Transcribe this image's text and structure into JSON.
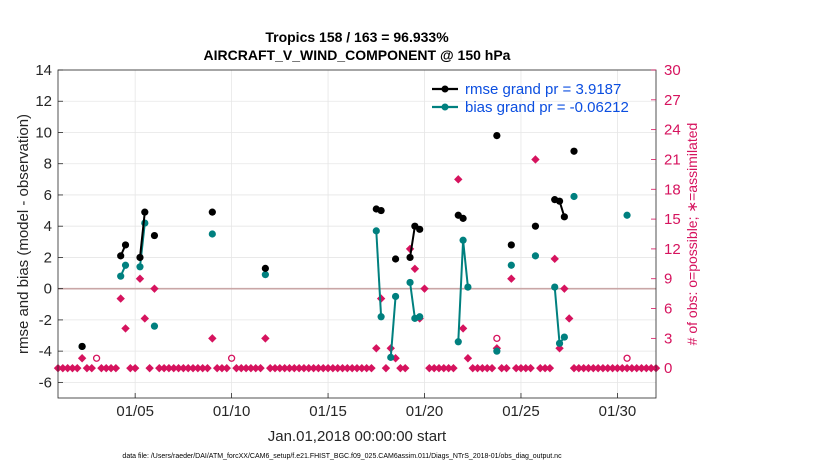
{
  "colors": {
    "rmse": "#000000",
    "bias": "#00807f",
    "obs": "#d6135e",
    "zero_line": "#c9a6a6",
    "legend_text": "#0b4ee0",
    "grid": "#e6e6e6"
  },
  "chart_data": {
    "type": "line",
    "title": "Tropics 158 / 163 = 96.933%",
    "subtitle": "AIRCRAFT_V_WIND_COMPONENT @ 150 hPa",
    "xlabel": "Jan.01,2018 00:00:00 start",
    "ylabel": "rmse and bias (model - observation)",
    "ylabel_right": "# of obs: o=possible; ∗=assimilated",
    "xlim": [
      1,
      32
    ],
    "ylim": [
      -7,
      14
    ],
    "ylim_right": [
      -3,
      30
    ],
    "x_ticks": [
      5,
      10,
      15,
      20,
      25,
      30
    ],
    "x_tick_labels": [
      "01/05",
      "01/10",
      "01/15",
      "01/20",
      "01/25",
      "01/30"
    ],
    "y_ticks": [
      -6,
      -4,
      -2,
      0,
      2,
      4,
      6,
      8,
      10,
      12,
      14
    ],
    "y_tick_labels": [
      "-6",
      "-4",
      "-2",
      "0",
      "2",
      "4",
      "6",
      "8",
      "10",
      "12",
      "14"
    ],
    "y_ticks_right": [
      0,
      3,
      6,
      9,
      12,
      15,
      18,
      21,
      24,
      27,
      30
    ],
    "y_tick_labels_right": [
      "0",
      "3",
      "6",
      "9",
      "12",
      "15",
      "18",
      "21",
      "24",
      "27",
      "30"
    ],
    "grid": true,
    "legend": {
      "position": "top-right",
      "entries": [
        "rmse grand pr = 3.9187",
        "bias grand pr = -0.06212"
      ]
    },
    "series": [
      {
        "name": "rmse grand pr = 3.9187",
        "segments": [
          [
            [
              2.25,
              -3.7
            ]
          ],
          [
            [
              4.25,
              2.1
            ],
            [
              4.5,
              2.8
            ]
          ],
          [
            [
              5.25,
              2.0
            ],
            [
              5.5,
              4.9
            ]
          ],
          [
            [
              6.0,
              3.4
            ]
          ],
          [
            [
              9.0,
              4.9
            ]
          ],
          [
            [
              11.75,
              1.3
            ]
          ],
          [
            [
              17.5,
              5.1
            ],
            [
              17.75,
              5.0
            ]
          ],
          [
            [
              18.5,
              1.9
            ]
          ],
          [
            [
              19.25,
              2.0
            ],
            [
              19.5,
              4.0
            ],
            [
              19.75,
              3.8
            ]
          ],
          [
            [
              21.75,
              4.7
            ],
            [
              22.0,
              4.5
            ]
          ],
          [
            [
              23.75,
              9.8
            ]
          ],
          [
            [
              24.5,
              2.8
            ]
          ],
          [
            [
              25.75,
              4.0
            ]
          ],
          [
            [
              26.75,
              5.7
            ],
            [
              27.0,
              5.6
            ],
            [
              27.25,
              4.6
            ]
          ],
          [
            [
              27.75,
              8.8
            ]
          ]
        ]
      },
      {
        "name": "bias grand pr = -0.06212",
        "segments": [
          [
            [
              2.25,
              -3.7
            ]
          ],
          [
            [
              4.25,
              0.8
            ],
            [
              4.5,
              1.5
            ]
          ],
          [
            [
              5.25,
              1.4
            ],
            [
              5.5,
              4.2
            ]
          ],
          [
            [
              6.0,
              -2.4
            ]
          ],
          [
            [
              9.0,
              3.5
            ]
          ],
          [
            [
              11.75,
              0.9
            ]
          ],
          [
            [
              17.5,
              3.7
            ],
            [
              17.75,
              -1.8
            ]
          ],
          [
            [
              18.25,
              -4.4
            ],
            [
              18.5,
              -0.5
            ]
          ],
          [
            [
              19.25,
              0.4
            ],
            [
              19.5,
              -1.9
            ],
            [
              19.75,
              -1.8
            ]
          ],
          [
            [
              21.75,
              -3.4
            ],
            [
              22.0,
              3.1
            ],
            [
              22.25,
              0.1
            ]
          ],
          [
            [
              23.75,
              -4.0
            ]
          ],
          [
            [
              24.5,
              1.5
            ]
          ],
          [
            [
              25.75,
              2.1
            ]
          ],
          [
            [
              26.75,
              0.1
            ],
            [
              27.0,
              -3.5
            ],
            [
              27.25,
              -3.1
            ]
          ],
          [
            [
              27.75,
              5.9
            ]
          ],
          [
            [
              30.5,
              4.7
            ]
          ]
        ]
      },
      {
        "name": "# of obs possible (o)",
        "axis": "right",
        "points": [
          [
            3.0,
            1
          ],
          [
            10.0,
            1
          ],
          [
            23.75,
            3
          ],
          [
            30.5,
            1
          ]
        ]
      },
      {
        "name": "# of obs assimilated (*)",
        "axis": "right",
        "points": [
          [
            1.0,
            0
          ],
          [
            1.25,
            0
          ],
          [
            1.5,
            0
          ],
          [
            1.75,
            0
          ],
          [
            2.0,
            0
          ],
          [
            2.25,
            1
          ],
          [
            2.5,
            0
          ],
          [
            2.75,
            0
          ],
          [
            3.25,
            0
          ],
          [
            3.5,
            0
          ],
          [
            3.75,
            0
          ],
          [
            4.0,
            0
          ],
          [
            4.25,
            7
          ],
          [
            4.5,
            4
          ],
          [
            4.75,
            0
          ],
          [
            5.0,
            0
          ],
          [
            5.25,
            9
          ],
          [
            5.5,
            5
          ],
          [
            5.75,
            0
          ],
          [
            6.0,
            8
          ],
          [
            6.25,
            0
          ],
          [
            6.5,
            0
          ],
          [
            6.75,
            0
          ],
          [
            7.0,
            0
          ],
          [
            7.25,
            0
          ],
          [
            7.5,
            0
          ],
          [
            7.75,
            0
          ],
          [
            8.0,
            0
          ],
          [
            8.25,
            0
          ],
          [
            8.5,
            0
          ],
          [
            8.75,
            0
          ],
          [
            9.0,
            3
          ],
          [
            9.25,
            0
          ],
          [
            9.5,
            0
          ],
          [
            9.75,
            0
          ],
          [
            10.25,
            0
          ],
          [
            10.5,
            0
          ],
          [
            10.75,
            0
          ],
          [
            11.0,
            0
          ],
          [
            11.25,
            0
          ],
          [
            11.5,
            0
          ],
          [
            11.75,
            3
          ],
          [
            12.0,
            0
          ],
          [
            12.25,
            0
          ],
          [
            12.5,
            0
          ],
          [
            12.75,
            0
          ],
          [
            13.0,
            0
          ],
          [
            13.25,
            0
          ],
          [
            13.5,
            0
          ],
          [
            13.75,
            0
          ],
          [
            14.0,
            0
          ],
          [
            14.25,
            0
          ],
          [
            14.5,
            0
          ],
          [
            14.75,
            0
          ],
          [
            15.0,
            0
          ],
          [
            15.25,
            0
          ],
          [
            15.5,
            0
          ],
          [
            15.75,
            0
          ],
          [
            16.0,
            0
          ],
          [
            16.25,
            0
          ],
          [
            16.5,
            0
          ],
          [
            16.75,
            0
          ],
          [
            17.0,
            0
          ],
          [
            17.25,
            0
          ],
          [
            17.5,
            2
          ],
          [
            17.75,
            7
          ],
          [
            18.0,
            0
          ],
          [
            18.25,
            2
          ],
          [
            18.5,
            1
          ],
          [
            18.75,
            0
          ],
          [
            19.0,
            0
          ],
          [
            19.25,
            12
          ],
          [
            19.5,
            10
          ],
          [
            19.75,
            5
          ],
          [
            20.0,
            8
          ],
          [
            20.25,
            0
          ],
          [
            20.5,
            0
          ],
          [
            20.75,
            0
          ],
          [
            21.0,
            0
          ],
          [
            21.25,
            0
          ],
          [
            21.5,
            0
          ],
          [
            21.75,
            19
          ],
          [
            22.0,
            4
          ],
          [
            22.25,
            1
          ],
          [
            22.5,
            0
          ],
          [
            22.75,
            0
          ],
          [
            23.0,
            0
          ],
          [
            23.25,
            0
          ],
          [
            23.5,
            0
          ],
          [
            23.75,
            2
          ],
          [
            24.0,
            0
          ],
          [
            24.25,
            0
          ],
          [
            24.5,
            9
          ],
          [
            24.75,
            0
          ],
          [
            25.0,
            0
          ],
          [
            25.25,
            0
          ],
          [
            25.5,
            0
          ],
          [
            25.75,
            21
          ],
          [
            26.0,
            0
          ],
          [
            26.25,
            0
          ],
          [
            26.5,
            0
          ],
          [
            26.75,
            11
          ],
          [
            27.0,
            2
          ],
          [
            27.25,
            8
          ],
          [
            27.5,
            5
          ],
          [
            27.75,
            0
          ],
          [
            28.0,
            0
          ],
          [
            28.25,
            0
          ],
          [
            28.5,
            0
          ],
          [
            28.75,
            0
          ],
          [
            29.0,
            0
          ],
          [
            29.25,
            0
          ],
          [
            29.5,
            0
          ],
          [
            29.75,
            0
          ],
          [
            30.0,
            0
          ],
          [
            30.25,
            0
          ],
          [
            30.5,
            0
          ],
          [
            30.75,
            0
          ],
          [
            31.0,
            0
          ],
          [
            31.25,
            0
          ],
          [
            31.5,
            0
          ],
          [
            31.75,
            0
          ],
          [
            32.0,
            0
          ]
        ]
      }
    ]
  },
  "footnote": "data file: /Users/raeder/DAI/ATM_forcXX/CAM6_setup/f.e21.FHIST_BGC.f09_025.CAM6assim.011/Diags_NTrS_2018-01/obs_diag_output.nc"
}
